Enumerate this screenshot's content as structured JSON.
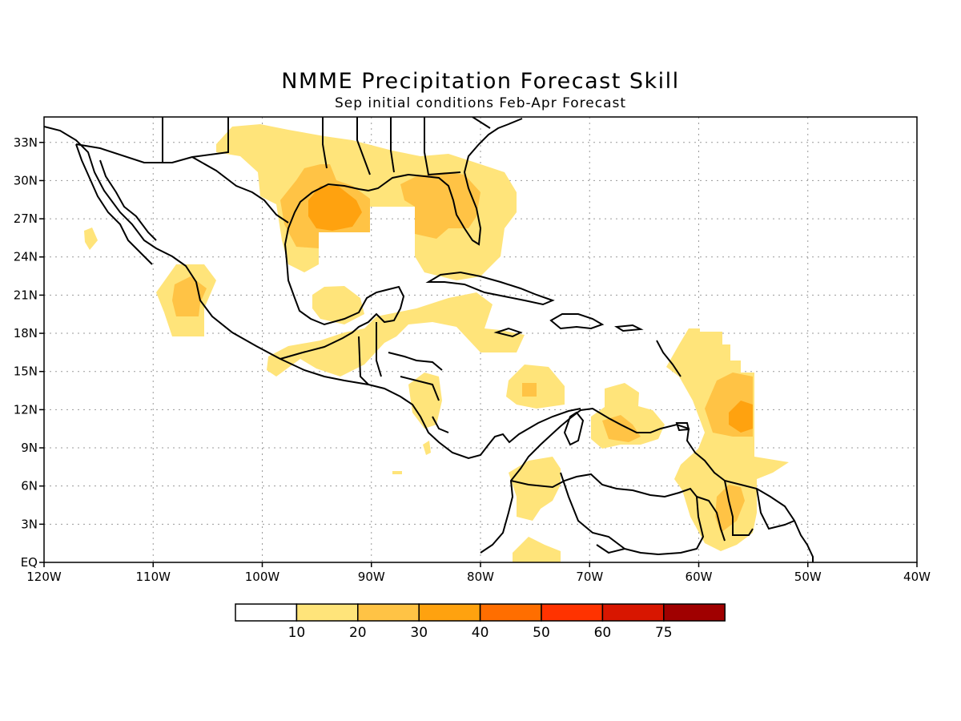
{
  "title": "NMME Precipitation Forecast Skill",
  "subtitle": "Sep initial conditions  Feb-Apr Forecast",
  "lat_labels": [
    "33N",
    "30N",
    "27N",
    "24N",
    "21N",
    "18N",
    "15N",
    "12N",
    "9N",
    "6N",
    "3N",
    "EQ"
  ],
  "lon_labels": [
    "120W",
    "110W",
    "100W",
    "90W",
    "80W",
    "70W",
    "60W",
    "50W",
    "40W"
  ],
  "legend": {
    "thresholds": [
      "10",
      "20",
      "30",
      "40",
      "50",
      "60",
      "75"
    ],
    "colors": [
      "#ffffff",
      "#ffe47a",
      "#ffc345",
      "#ffa20f",
      "#ff6e00",
      "#ff3300",
      "#d81600",
      "#a00000"
    ]
  },
  "map": {
    "lon_range": [
      -120,
      -40
    ],
    "lat_range": [
      0,
      35
    ],
    "region": "Mexico, Central America, Caribbean, northern South America"
  }
}
